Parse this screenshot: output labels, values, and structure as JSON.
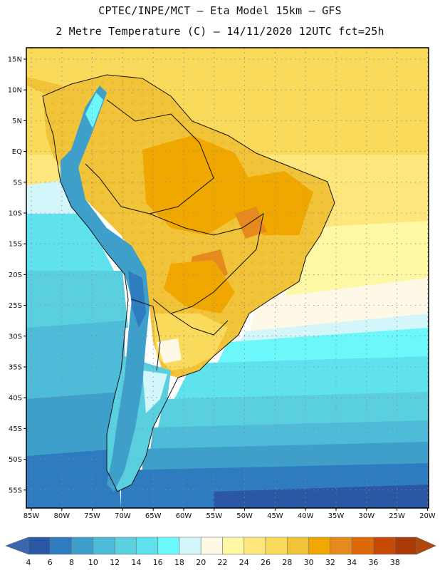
{
  "header": {
    "line1": "CPTEC/INPE/MCT –  Eta Model 15km – GFS",
    "line2": "2 Metre Temperature (C) – 14/11/2020 12UTC fct=25h"
  },
  "axes": {
    "lat_labels": [
      "15N",
      "10N",
      "5N",
      "EQ",
      "5S",
      "10S",
      "15S",
      "20S",
      "25S",
      "30S",
      "35S",
      "40S",
      "45S",
      "50S",
      "55S"
    ],
    "lon_labels": [
      "85W",
      "80W",
      "75W",
      "70W",
      "65W",
      "60W",
      "55W",
      "50W",
      "45W",
      "40W",
      "35W",
      "30W",
      "25W",
      "20W"
    ]
  },
  "legend": {
    "labels": [
      "4",
      "6",
      "8",
      "10",
      "12",
      "14",
      "16",
      "18",
      "20",
      "22",
      "24",
      "26",
      "28",
      "30",
      "32",
      "34",
      "36",
      "38"
    ],
    "colors": [
      "#2a58a4",
      "#2f7bbf",
      "#3f9fcb",
      "#4ebbd9",
      "#5acfe0",
      "#5fe2ee",
      "#6cf8fb",
      "#d3f6fb",
      "#fef9e6",
      "#fef7a3",
      "#fde77d",
      "#fada5a",
      "#f1c338",
      "#f0a800",
      "#e78a1e",
      "#dc6a0a",
      "#c44a04",
      "#a93b08"
    ],
    "low_arrow_color": "#3a67ad",
    "high_arrow_color": "#b1460b"
  }
}
